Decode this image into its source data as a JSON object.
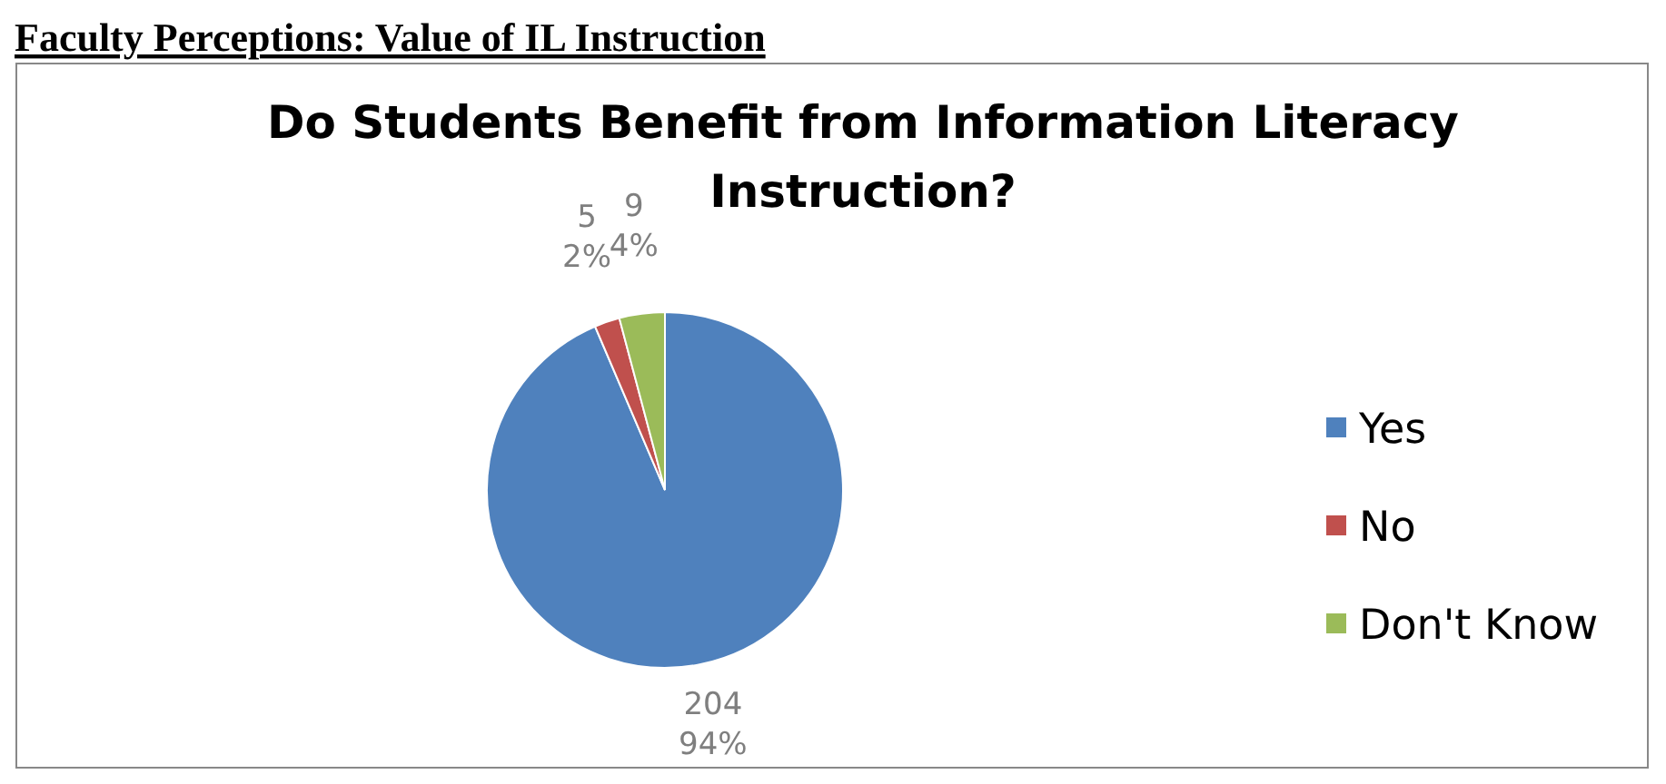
{
  "chart_data": {
    "type": "pie",
    "title": "Do Students Benefit from Information Literacy Instruction?",
    "annotations": [
      "Faculty Perceptions: Value of IL Instruction"
    ],
    "categories": [
      "Yes",
      "No",
      "Don't Know"
    ],
    "values": [
      204,
      5,
      9
    ],
    "value_labels": [
      "204\n94%",
      "5\n2%",
      "9\n4%"
    ],
    "colors": [
      "#4f81bd",
      "#c0504d",
      "#9bbb59"
    ],
    "legend": "right"
  }
}
